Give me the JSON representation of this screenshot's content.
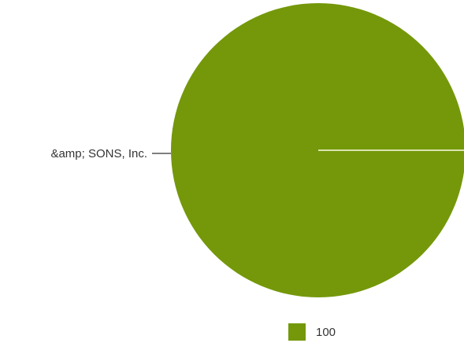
{
  "chart_data": {
    "type": "pie",
    "slices": [
      {
        "label": "&amp; SONS, Inc.",
        "value": 100,
        "color": "#74980a"
      }
    ],
    "legend": {
      "placement": "bottom",
      "entries": [
        {
          "label": "100",
          "color": "#74980a"
        }
      ]
    },
    "colors": {
      "slice_border": "#d9e3b0"
    }
  }
}
